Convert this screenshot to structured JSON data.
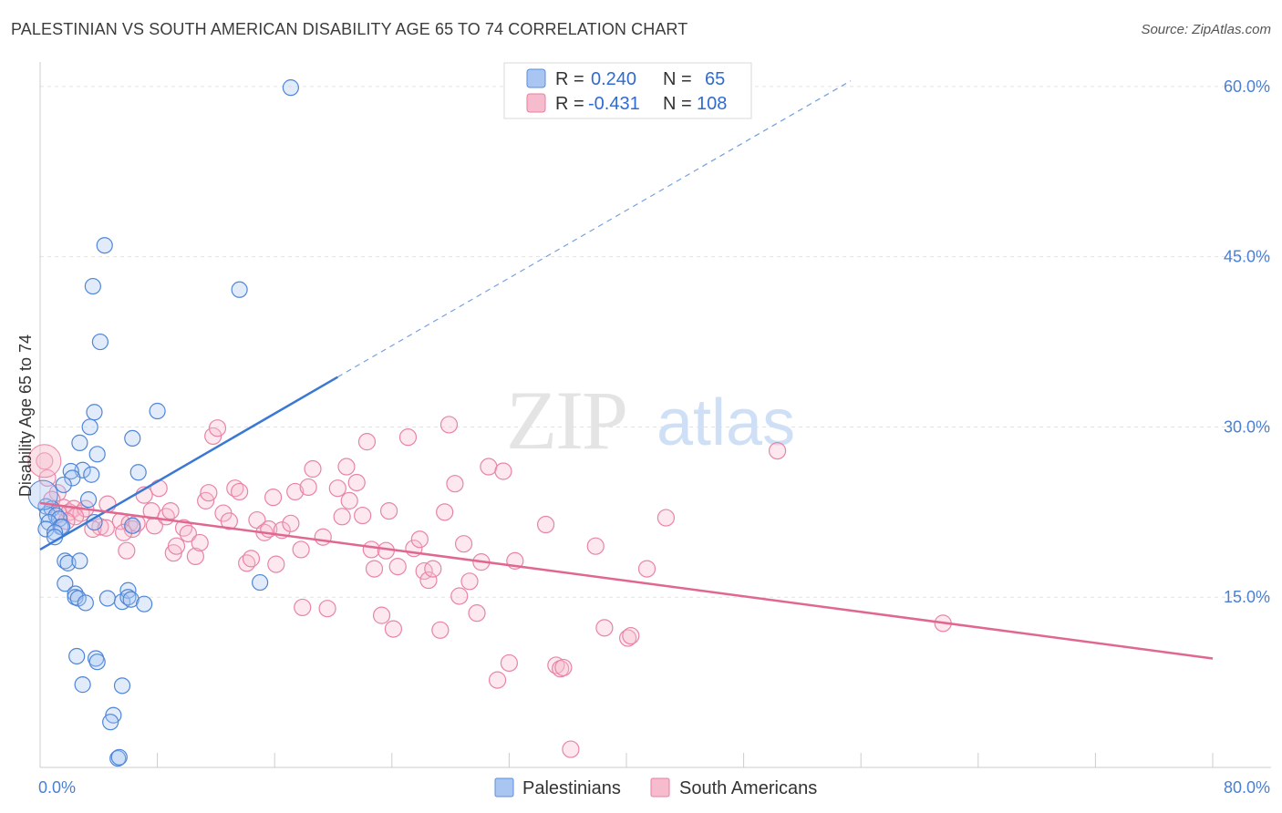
{
  "title": "PALESTINIAN VS SOUTH AMERICAN DISABILITY AGE 65 TO 74 CORRELATION CHART",
  "source": "Source: ZipAtlas.com",
  "watermark": {
    "zip": "ZIP",
    "atlas": "atlas"
  },
  "legend": {
    "r_label": "R =",
    "n_label": "N =",
    "entries": [
      {
        "r": "0.240",
        "n": "65",
        "color": "#a9c6f2",
        "stroke": "#5b8fd9"
      },
      {
        "r": "-0.431",
        "n": "108",
        "color": "#f6bccd",
        "stroke": "#e77fa2"
      }
    ]
  },
  "bottom_legend": [
    "Palestinians",
    "South Americans"
  ],
  "colors": {
    "blue": "#3a78d4",
    "pink": "#e0688f",
    "grid": "#e3e3e3",
    "tick": "#4a7fd4"
  },
  "chart_data": {
    "type": "scatter",
    "title": "PALESTINIAN VS SOUTH AMERICAN DISABILITY AGE 65 TO 74 CORRELATION CHART",
    "xlabel": "",
    "ylabel": "Disability Age 65 to 74",
    "xlim": [
      0,
      80
    ],
    "ylim": [
      0,
      62
    ],
    "x_tick_labels": [
      "0.0%",
      "80.0%"
    ],
    "y_ticks": [
      15,
      30,
      45,
      60
    ],
    "y_tick_labels": [
      "15.0%",
      "30.0%",
      "45.0%",
      "60.0%"
    ],
    "grid": true,
    "legend_position": "top-center",
    "series": [
      {
        "name": "Palestinians",
        "r": 0.24,
        "n": 65,
        "trend": {
          "x": [
            0,
            20.3
          ],
          "y": [
            19.2,
            34.4
          ],
          "dashed_to": [
            55.3,
            60.5
          ]
        },
        "points": [
          [
            17.1,
            59.9
          ],
          [
            4.4,
            46.0
          ],
          [
            3.6,
            42.4
          ],
          [
            13.6,
            42.1
          ],
          [
            4.1,
            37.5
          ],
          [
            3.7,
            31.3
          ],
          [
            8.0,
            31.4
          ],
          [
            3.4,
            30.0
          ],
          [
            6.3,
            29.0
          ],
          [
            2.7,
            28.6
          ],
          [
            3.9,
            27.6
          ],
          [
            2.9,
            26.2
          ],
          [
            2.1,
            26.1
          ],
          [
            3.5,
            25.8
          ],
          [
            6.7,
            26.0
          ],
          [
            2.2,
            25.5
          ],
          [
            1.6,
            24.9
          ],
          [
            0.4,
            23.0
          ],
          [
            0.8,
            22.8
          ],
          [
            0.5,
            22.3
          ],
          [
            1.1,
            22.2
          ],
          [
            1.3,
            21.9
          ],
          [
            3.3,
            23.6
          ],
          [
            0.6,
            21.6
          ],
          [
            1.4,
            21.2
          ],
          [
            1.5,
            21.2
          ],
          [
            0.4,
            21.0
          ],
          [
            1.0,
            20.7
          ],
          [
            3.7,
            21.6
          ],
          [
            6.3,
            21.3
          ],
          [
            1.0,
            20.3
          ],
          [
            1.7,
            18.2
          ],
          [
            1.9,
            18.0
          ],
          [
            2.7,
            18.2
          ],
          [
            15.0,
            16.3
          ],
          [
            1.7,
            16.2
          ],
          [
            2.4,
            15.3
          ],
          [
            2.4,
            15.0
          ],
          [
            2.6,
            14.9
          ],
          [
            3.1,
            14.5
          ],
          [
            4.6,
            14.9
          ],
          [
            5.6,
            14.6
          ],
          [
            6.0,
            15.6
          ],
          [
            6.0,
            15.0
          ],
          [
            6.2,
            14.8
          ],
          [
            7.1,
            14.4
          ],
          [
            2.5,
            9.8
          ],
          [
            3.8,
            9.6
          ],
          [
            3.9,
            9.3
          ],
          [
            2.9,
            7.3
          ],
          [
            5.6,
            7.2
          ],
          [
            5.0,
            4.6
          ],
          [
            4.8,
            4.0
          ],
          [
            5.3,
            0.8
          ],
          [
            5.4,
            0.9
          ]
        ]
      },
      {
        "name": "South Americans",
        "r": -0.431,
        "n": 108,
        "trend": {
          "x": [
            0,
            80
          ],
          "y": [
            23.3,
            9.6
          ]
        },
        "points": [
          [
            0.3,
            27.0
          ],
          [
            0.5,
            25.5
          ],
          [
            1.2,
            24.2
          ],
          [
            0.8,
            23.6
          ],
          [
            1.6,
            22.9
          ],
          [
            1.3,
            22.3
          ],
          [
            2.0,
            22.5
          ],
          [
            2.3,
            22.8
          ],
          [
            2.8,
            22.4
          ],
          [
            3.1,
            22.8
          ],
          [
            2.4,
            22.1
          ],
          [
            1.8,
            21.7
          ],
          [
            4.6,
            23.2
          ],
          [
            4.1,
            21.2
          ],
          [
            3.6,
            21.0
          ],
          [
            4.5,
            21.1
          ],
          [
            5.5,
            21.7
          ],
          [
            6.1,
            21.5
          ],
          [
            6.3,
            21.0
          ],
          [
            5.9,
            19.1
          ],
          [
            5.7,
            20.7
          ],
          [
            6.6,
            21.5
          ],
          [
            7.1,
            24.0
          ],
          [
            7.6,
            22.6
          ],
          [
            7.8,
            21.3
          ],
          [
            8.1,
            24.6
          ],
          [
            8.6,
            22.1
          ],
          [
            8.9,
            22.6
          ],
          [
            9.1,
            18.9
          ],
          [
            9.3,
            19.5
          ],
          [
            9.8,
            21.1
          ],
          [
            10.1,
            20.6
          ],
          [
            10.6,
            18.6
          ],
          [
            10.9,
            19.8
          ],
          [
            11.3,
            23.5
          ],
          [
            11.5,
            24.2
          ],
          [
            11.8,
            29.2
          ],
          [
            12.1,
            29.9
          ],
          [
            12.5,
            22.4
          ],
          [
            12.9,
            21.7
          ],
          [
            13.3,
            24.6
          ],
          [
            13.6,
            24.3
          ],
          [
            14.1,
            18.0
          ],
          [
            14.4,
            18.4
          ],
          [
            14.8,
            21.8
          ],
          [
            15.3,
            20.7
          ],
          [
            15.6,
            21.0
          ],
          [
            15.9,
            23.8
          ],
          [
            16.1,
            17.9
          ],
          [
            16.5,
            20.9
          ],
          [
            17.1,
            21.5
          ],
          [
            17.4,
            24.3
          ],
          [
            17.8,
            19.2
          ],
          [
            17.9,
            14.1
          ],
          [
            18.3,
            24.7
          ],
          [
            18.6,
            26.3
          ],
          [
            19.3,
            20.3
          ],
          [
            19.6,
            14.0
          ],
          [
            20.3,
            24.6
          ],
          [
            20.6,
            22.1
          ],
          [
            20.9,
            26.5
          ],
          [
            21.1,
            23.5
          ],
          [
            21.6,
            25.1
          ],
          [
            22.0,
            22.2
          ],
          [
            22.3,
            28.7
          ],
          [
            22.6,
            19.2
          ],
          [
            22.8,
            17.5
          ],
          [
            23.3,
            13.4
          ],
          [
            23.6,
            19.1
          ],
          [
            23.8,
            22.6
          ],
          [
            24.1,
            12.2
          ],
          [
            24.4,
            17.7
          ],
          [
            25.1,
            29.1
          ],
          [
            25.5,
            19.3
          ],
          [
            25.9,
            20.1
          ],
          [
            26.2,
            17.3
          ],
          [
            26.5,
            16.5
          ],
          [
            26.8,
            17.5
          ],
          [
            27.3,
            12.1
          ],
          [
            27.6,
            22.5
          ],
          [
            27.9,
            30.2
          ],
          [
            28.3,
            25.0
          ],
          [
            28.6,
            15.1
          ],
          [
            28.9,
            19.7
          ],
          [
            29.3,
            16.4
          ],
          [
            29.8,
            13.6
          ],
          [
            30.1,
            18.1
          ],
          [
            30.6,
            26.5
          ],
          [
            31.2,
            7.7
          ],
          [
            31.6,
            26.1
          ],
          [
            32.0,
            9.2
          ],
          [
            32.4,
            18.2
          ],
          [
            34.5,
            21.4
          ],
          [
            35.2,
            9.0
          ],
          [
            35.5,
            8.7
          ],
          [
            35.7,
            8.8
          ],
          [
            36.2,
            1.6
          ],
          [
            37.9,
            19.5
          ],
          [
            38.5,
            12.3
          ],
          [
            40.1,
            11.4
          ],
          [
            40.3,
            11.6
          ],
          [
            41.4,
            17.5
          ],
          [
            42.7,
            22.0
          ],
          [
            50.3,
            27.9
          ],
          [
            61.6,
            12.7
          ]
        ]
      }
    ]
  }
}
